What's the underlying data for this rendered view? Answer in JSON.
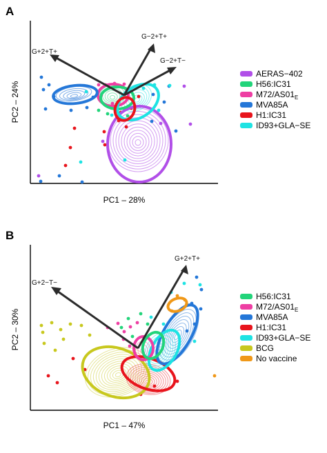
{
  "chart_data": [
    {
      "panel": "A",
      "type": "scatter",
      "xlabel": "PC1 – 28%",
      "ylabel": "PC2 – 24%",
      "loadings": [
        {
          "label": "G+2+T+",
          "direction": "up-left"
        },
        {
          "label": "G−2+T+",
          "direction": "up-right"
        },
        {
          "label": "G−2+T−",
          "direction": "right"
        }
      ],
      "legend_position": "right",
      "series": [
        {
          "name": "AERAS−402",
          "color": "#b14fe8"
        },
        {
          "name": "H56:IC31",
          "color": "#22d47a"
        },
        {
          "name": "M72/AS01",
          "name_subscript": "E",
          "color": "#ee3ea3"
        },
        {
          "name": "MVA85A",
          "color": "#2477d8"
        },
        {
          "name": "H1:IC31",
          "color": "#e8141c"
        },
        {
          "name": "ID93+GLA−SE",
          "color": "#1ee3e3"
        }
      ]
    },
    {
      "panel": "B",
      "type": "scatter",
      "xlabel": "PC1 – 47%",
      "ylabel": "PC2 – 30%",
      "loadings": [
        {
          "label": "G+2+T+",
          "direction": "up-right"
        },
        {
          "label": "G+2−T−",
          "direction": "up-left"
        }
      ],
      "legend_position": "right",
      "series": [
        {
          "name": "H56:IC31",
          "color": "#22d47a"
        },
        {
          "name": "M72/AS01",
          "name_subscript": "E",
          "color": "#ee3ea3"
        },
        {
          "name": "MVA85A",
          "color": "#2477d8"
        },
        {
          "name": "H1:IC31",
          "color": "#e8141c"
        },
        {
          "name": "ID93+GLA−SE",
          "color": "#1ee3e3"
        },
        {
          "name": "BCG",
          "color": "#c8c81e"
        },
        {
          "name": "No vaccine",
          "color": "#f09818"
        }
      ]
    }
  ],
  "panel_letters": [
    "A",
    "B"
  ]
}
